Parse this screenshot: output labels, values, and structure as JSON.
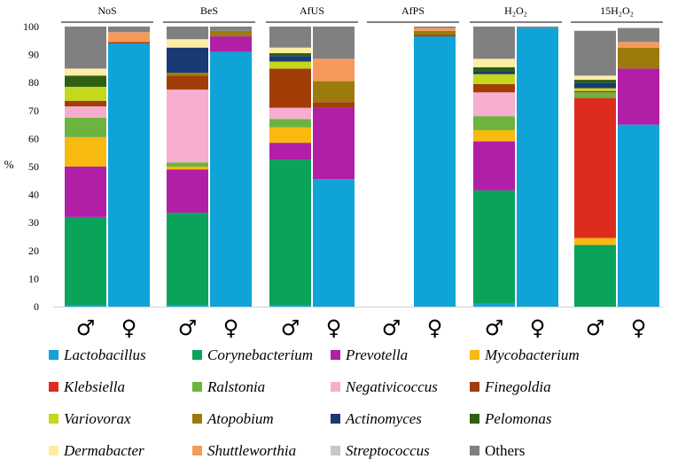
{
  "chart_data": {
    "type": "stacked-bar",
    "ylabel": "%",
    "ylim": [
      0,
      100
    ],
    "yticks": [
      0,
      10,
      20,
      30,
      40,
      50,
      60,
      70,
      80,
      90,
      100
    ],
    "sex_labels": {
      "male": "♂",
      "female": "♀"
    },
    "genera": [
      {
        "name": "Lactobacillus",
        "color": "#0fa3d8"
      },
      {
        "name": "Corynebacterium",
        "color": "#0aa35a"
      },
      {
        "name": "Prevotella",
        "color": "#b01fa6"
      },
      {
        "name": "Mycobacterium",
        "color": "#f8b911"
      },
      {
        "name": "Klebsiella",
        "color": "#dd2c1f"
      },
      {
        "name": "Ralstonia",
        "color": "#6db33f"
      },
      {
        "name": "Negativicoccus",
        "color": "#f6adcf"
      },
      {
        "name": "Finegoldia",
        "color": "#a33d07"
      },
      {
        "name": "Variovorax",
        "color": "#c4d81c"
      },
      {
        "name": "Atopobium",
        "color": "#9c7a0c"
      },
      {
        "name": "Actinomyces",
        "color": "#1a3a73"
      },
      {
        "name": "Pelomonas",
        "color": "#2f5f12"
      },
      {
        "name": "Dermabacter",
        "color": "#fdeda3"
      },
      {
        "name": "Shuttleworthia",
        "color": "#f69a5b"
      },
      {
        "name": "Streptococcus",
        "color": "#c8c8c8"
      },
      {
        "name": "Others",
        "color": "#808080"
      }
    ],
    "groups": [
      {
        "title": "NoS",
        "male": [
          0.5,
          31.5,
          18,
          10.5,
          0,
          7,
          4,
          2,
          5,
          0,
          0,
          4,
          2.5,
          0,
          0,
          15
        ],
        "female": [
          94,
          0,
          0,
          0,
          0,
          0,
          0,
          0.5,
          0,
          0,
          0,
          0,
          0,
          3.5,
          0,
          2
        ]
      },
      {
        "title": "BeS",
        "male": [
          0.5,
          33,
          15.5,
          1,
          0,
          1.5,
          26,
          5,
          0,
          1,
          9,
          0,
          3,
          0,
          0,
          4.5
        ],
        "female": [
          91,
          0,
          5.5,
          0,
          0,
          0,
          0,
          0,
          0,
          2,
          0,
          0,
          0,
          0,
          0,
          1.5
        ]
      },
      {
        "title": "AfUS",
        "male": [
          0.5,
          52,
          6,
          5.5,
          0,
          3,
          4,
          14,
          2.5,
          0,
          2,
          1,
          2,
          0,
          0,
          7.5
        ],
        "female": [
          45.5,
          0,
          25.5,
          0,
          0,
          0,
          0,
          2,
          0,
          7.5,
          0,
          0,
          0,
          8,
          0,
          11.5
        ]
      },
      {
        "title": "AfPS",
        "male": null,
        "female": [
          96.5,
          0,
          0,
          0,
          0,
          0,
          0,
          0.5,
          0,
          1.5,
          0,
          0,
          0,
          1,
          0,
          0.5
        ]
      },
      {
        "title": "H₂O₂",
        "male": [
          1,
          40.5,
          17.5,
          4,
          0,
          5,
          8.5,
          3,
          3.5,
          0,
          1,
          1.5,
          3,
          0,
          0,
          11.5
        ],
        "female": [
          99.5,
          0,
          0,
          0,
          0,
          0,
          0,
          0,
          0,
          0,
          0,
          0,
          0,
          0,
          0,
          0.5
        ]
      },
      {
        "title": "15H₂O₂",
        "male": [
          0,
          22,
          0,
          2.5,
          50,
          2,
          0,
          0.5,
          1,
          0,
          2,
          1,
          1.5,
          0,
          0,
          16
        ],
        "female": [
          65,
          0,
          20,
          0,
          0,
          0,
          0,
          0,
          0,
          7.5,
          0,
          0,
          0,
          2,
          0,
          5
        ]
      }
    ]
  }
}
